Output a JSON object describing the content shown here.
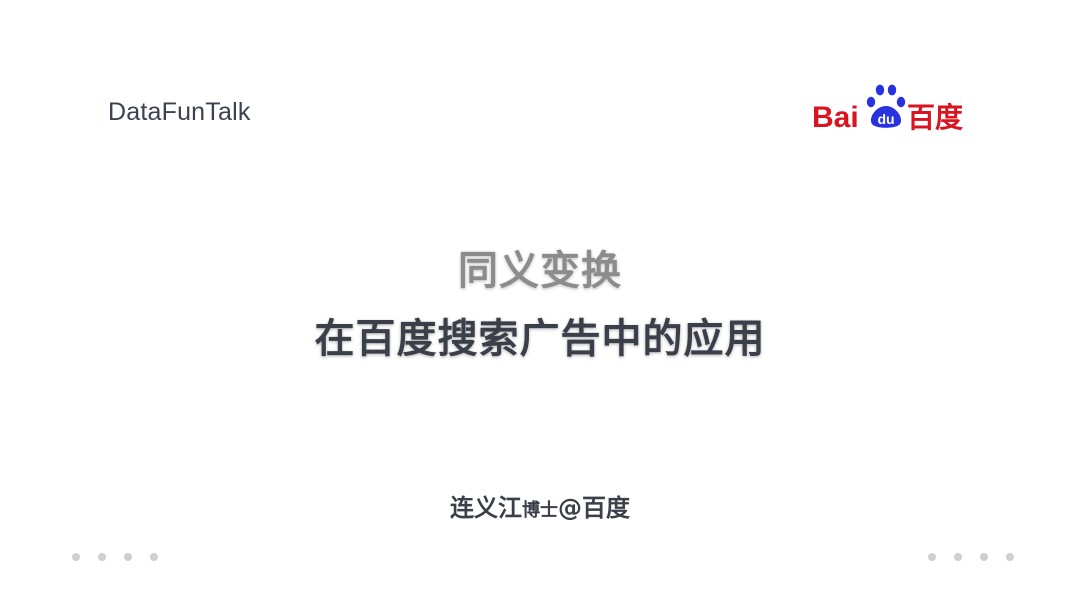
{
  "header": {
    "brand_left": "DataFunTalk",
    "brand_right": {
      "text_bai": "Bai",
      "text_du": "du",
      "text_chinese": "百度",
      "color_red": "#d7141f",
      "color_blue": "#2932e1"
    }
  },
  "main": {
    "title_line1": "同义变换",
    "title_line2": "在百度搜索广告中的应用"
  },
  "footer": {
    "author_name": "连义江",
    "author_title": "博士",
    "author_affiliation": "@百度"
  }
}
